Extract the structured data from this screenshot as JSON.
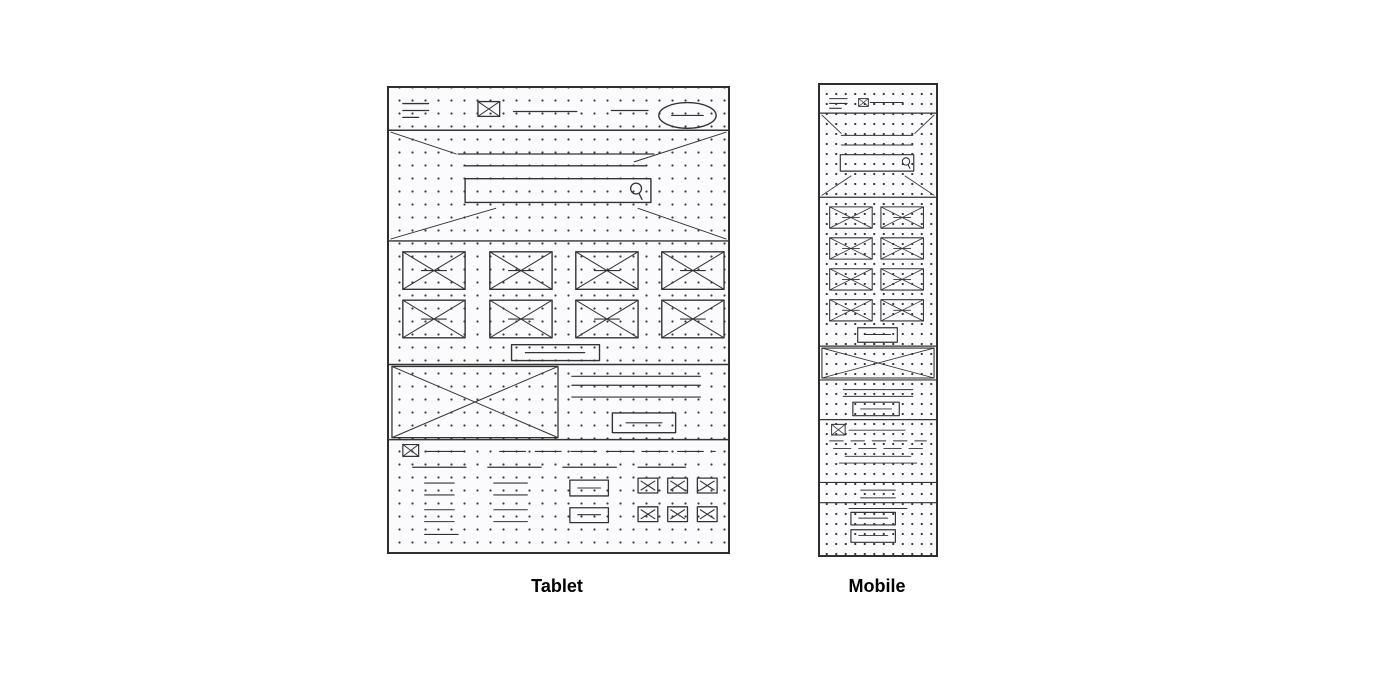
{
  "captions": {
    "tablet": "Tablet",
    "mobile": "Mobile"
  },
  "colors": {
    "pencil": "#333333",
    "paper": "#fbfbfd",
    "background": "#ffffff",
    "caption": "#000000"
  },
  "tablet": {
    "header": {
      "menu_icon": "hamburger-icon",
      "logo": "image-placeholder",
      "nav_links": 2,
      "action": "pill-button"
    },
    "hero": {
      "type": "image-placeholder",
      "text_lines": 2,
      "search_icon": "search-icon"
    },
    "product_grid": {
      "columns": 4,
      "rows": 2,
      "button": 1
    },
    "feature": {
      "image": "image-placeholder",
      "text_lines": 3,
      "button": 1
    },
    "footer": {
      "logo": "image-placeholder",
      "link_columns": 3,
      "buttons": 2,
      "social_icons": 6
    }
  },
  "mobile": {
    "header": {
      "menu_icon": "hamburger-icon",
      "logo": "image-placeholder"
    },
    "hero": {
      "type": "image-placeholder",
      "text_lines": 2,
      "search_icon": "search-icon"
    },
    "product_grid": {
      "columns": 2,
      "rows": 4,
      "button": 1
    },
    "feature": {
      "image": "image-placeholder",
      "text_lines": 2,
      "button": 1
    },
    "footer": {
      "logo": "image-placeholder",
      "buttons": 2
    }
  }
}
